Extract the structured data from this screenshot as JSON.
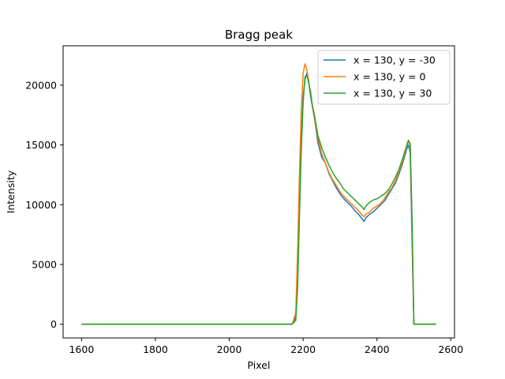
{
  "chart_data": {
    "type": "line",
    "title": "Bragg peak",
    "xlabel": "Pixel",
    "ylabel": "Intensity",
    "xlim": [
      1550,
      2610
    ],
    "ylim": [
      -1150,
      23300
    ],
    "xticks": [
      1600,
      1800,
      2000,
      2200,
      2400,
      2600
    ],
    "yticks": [
      0,
      5000,
      10000,
      15000,
      20000
    ],
    "grid": false,
    "legend": {
      "placement": "upper right"
    },
    "series": [
      {
        "name": "x = 130, y = -30",
        "color": "#1f77b4",
        "x": [
          1600,
          1800,
          2000,
          2170,
          2180,
          2185,
          2190,
          2195,
          2200,
          2205,
          2210,
          2215,
          2220,
          2225,
          2230,
          2240,
          2250,
          2260,
          2270,
          2280,
          2290,
          2300,
          2310,
          2320,
          2330,
          2340,
          2350,
          2360,
          2365,
          2370,
          2380,
          2390,
          2400,
          2410,
          2420,
          2430,
          2440,
          2450,
          2460,
          2470,
          2480,
          2485,
          2490,
          2495,
          2500,
          2510,
          2530,
          2560
        ],
        "y": [
          0,
          0,
          0,
          0,
          600,
          4000,
          10000,
          15500,
          19000,
          20500,
          21000,
          20200,
          19500,
          18300,
          17400,
          15200,
          14000,
          13500,
          12600,
          12000,
          11400,
          10900,
          10500,
          10200,
          9900,
          9500,
          9200,
          8800,
          8600,
          8900,
          9200,
          9400,
          9700,
          10000,
          10300,
          10800,
          11300,
          11800,
          12600,
          13500,
          14600,
          15000,
          14400,
          7000,
          0,
          0,
          0,
          0
        ]
      },
      {
        "name": "x = 130, y = 0",
        "color": "#ff7f0e",
        "x": [
          1600,
          1800,
          2000,
          2170,
          2180,
          2185,
          2190,
          2195,
          2200,
          2205,
          2210,
          2215,
          2220,
          2225,
          2230,
          2240,
          2250,
          2260,
          2270,
          2280,
          2290,
          2300,
          2310,
          2320,
          2330,
          2340,
          2350,
          2360,
          2365,
          2370,
          2380,
          2390,
          2400,
          2410,
          2420,
          2430,
          2440,
          2450,
          2460,
          2470,
          2480,
          2485,
          2490,
          2495,
          2500,
          2510,
          2530,
          2560
        ],
        "y": [
          0,
          0,
          0,
          0,
          900,
          6000,
          12500,
          18000,
          21000,
          21800,
          21300,
          20400,
          19200,
          18200,
          17300,
          15600,
          14300,
          13500,
          12700,
          12100,
          11600,
          11100,
          10700,
          10400,
          10100,
          9800,
          9500,
          9100,
          9000,
          9200,
          9400,
          9700,
          9900,
          10100,
          10500,
          11000,
          11400,
          12000,
          12800,
          13700,
          14800,
          15300,
          15000,
          8000,
          0,
          0,
          0,
          0
        ]
      },
      {
        "name": "x = 130, y = 30",
        "color": "#2ca02c",
        "x": [
          1600,
          1800,
          2000,
          2170,
          2180,
          2185,
          2190,
          2195,
          2200,
          2205,
          2210,
          2215,
          2220,
          2225,
          2230,
          2240,
          2250,
          2260,
          2270,
          2280,
          2290,
          2300,
          2310,
          2320,
          2330,
          2340,
          2350,
          2360,
          2365,
          2370,
          2380,
          2390,
          2400,
          2410,
          2420,
          2430,
          2440,
          2450,
          2460,
          2470,
          2480,
          2485,
          2490,
          2495,
          2500,
          2510,
          2530,
          2560
        ],
        "y": [
          0,
          0,
          0,
          0,
          300,
          3000,
          9000,
          14500,
          18500,
          20700,
          20800,
          20300,
          19100,
          18300,
          17600,
          15800,
          14800,
          14000,
          13300,
          12700,
          12200,
          11800,
          11300,
          11000,
          10700,
          10400,
          10100,
          9800,
          9600,
          9900,
          10200,
          10400,
          10500,
          10700,
          10900,
          11200,
          11700,
          12300,
          13000,
          13900,
          14900,
          15400,
          15100,
          9000,
          0,
          0,
          0,
          0
        ]
      }
    ]
  }
}
